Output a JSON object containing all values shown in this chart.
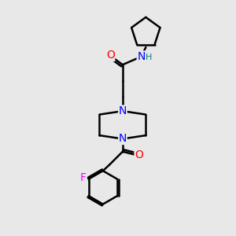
{
  "bg_color": "#e8e8e8",
  "atom_colors": {
    "C": "#000000",
    "N": "#0000ff",
    "O": "#ff0000",
    "F": "#ff00ff",
    "H": "#008080"
  },
  "bond_color": "#000000",
  "line_width": 1.8,
  "font_size_atom": 10,
  "font_size_small": 8
}
